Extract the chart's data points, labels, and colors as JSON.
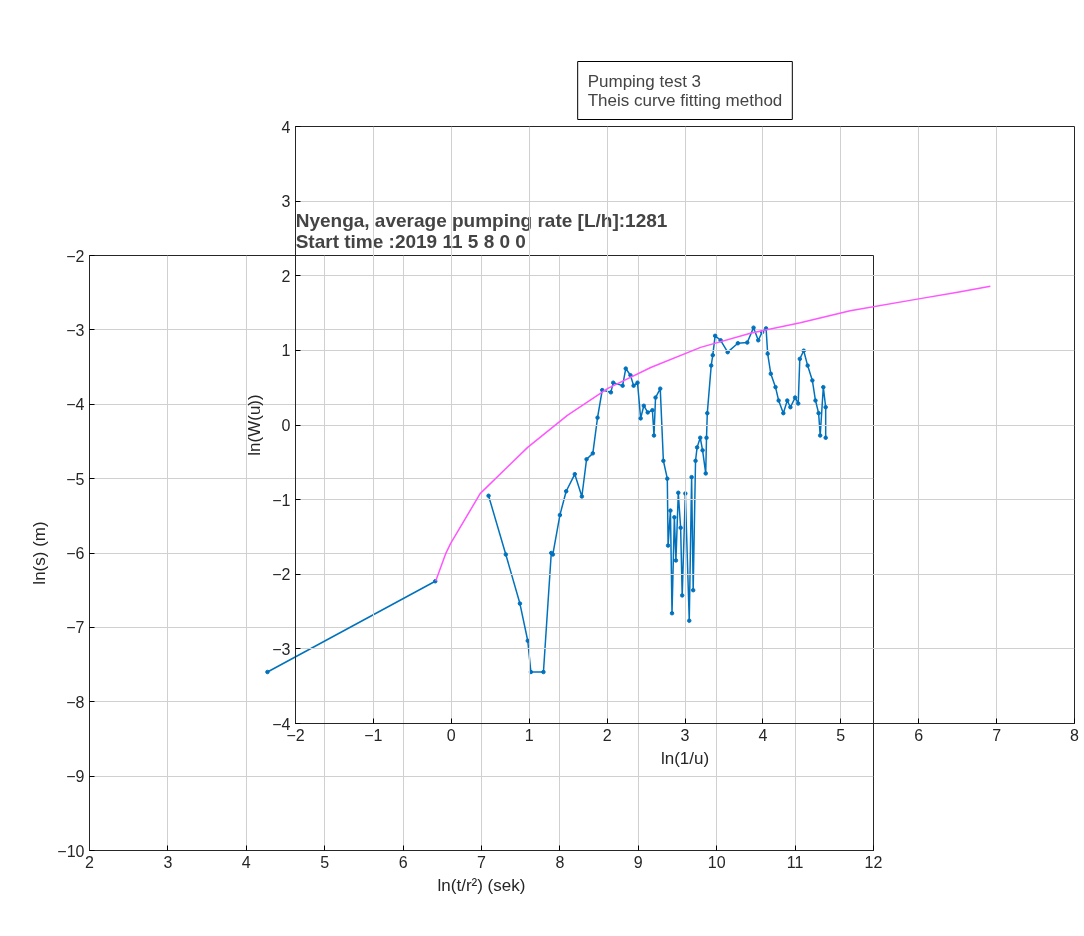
{
  "chart_data": [
    {
      "type": "line",
      "title": "Nyenga, average pumping rate [L/h]:1281\nStart time :2019     11     5     8     0     0",
      "xlabel": "ln(t/r²) (sek)",
      "ylabel": "ln(s) (m)",
      "xlim": [
        2,
        12
      ],
      "ylim": [
        -10,
        -2
      ],
      "xticks": [
        2,
        3,
        4,
        5,
        6,
        7,
        8,
        9,
        10,
        11,
        12
      ],
      "yticks": [
        -10,
        -9,
        -8,
        -7,
        -6,
        -5,
        -4,
        -3,
        -2
      ],
      "grid": true,
      "marker": "circle",
      "series": [
        {
          "color": "#0072bd",
          "x": [
            4.27,
            6.41,
            6.7,
            7.09,
            7.31,
            7.49,
            7.59,
            7.63,
            7.79,
            7.89,
            7.91,
            8.0,
            8.08,
            8.19,
            8.28,
            8.34,
            8.42,
            8.48,
            8.54,
            8.65,
            8.68,
            8.8,
            8.84,
            8.9,
            8.94,
            8.99,
            9.03,
            9.07,
            9.12,
            9.18,
            9.2,
            9.22,
            9.28,
            9.32,
            9.37,
            9.38,
            9.41,
            9.43,
            9.46,
            9.48,
            9.51,
            9.54,
            9.56,
            9.6,
            9.65,
            9.68,
            9.7,
            9.73,
            9.75,
            9.79,
            9.82,
            9.86,
            9.87,
            9.88,
            9.93,
            9.95,
            9.98,
            10.05,
            10.14,
            10.27,
            10.39,
            10.47,
            10.53,
            10.58,
            10.63,
            10.65,
            10.69,
            10.75,
            10.79,
            10.85,
            10.9,
            10.94,
            11.0,
            11.04,
            11.06,
            11.11,
            11.16,
            11.22,
            11.26,
            11.3,
            11.32,
            11.36,
            11.39,
            11.39
          ],
          "values": [
            -7.6,
            -6.38,
            null,
            -5.23,
            -6.02,
            -6.68,
            -7.18,
            -7.6,
            -7.6,
            -6.0,
            -6.02,
            -5.49,
            -5.17,
            -4.94,
            -5.24,
            -4.74,
            -4.66,
            -4.18,
            -3.81,
            -3.84,
            -3.71,
            -3.75,
            -3.52,
            -3.61,
            -3.75,
            -3.71,
            -4.19,
            -4.02,
            -4.11,
            -4.08,
            -4.42,
            -3.91,
            -3.79,
            -4.76,
            -5.0,
            -5.9,
            -5.43,
            -6.81,
            -5.52,
            -6.1,
            -5.19,
            -5.66,
            -6.57,
            -5.2,
            -6.91,
            -4.98,
            -6.5,
            -4.76,
            -4.58,
            -4.45,
            -4.62,
            -4.93,
            -4.45,
            -4.12,
            -3.48,
            -3.34,
            -3.08,
            -3.14,
            -3.3,
            -3.18,
            -3.17,
            -2.97,
            -3.14,
            -3.03,
            -2.98,
            -3.32,
            -3.59,
            -3.77,
            -3.95,
            -4.12,
            -3.95,
            -4.04,
            -3.91,
            -3.99,
            -3.39,
            -3.28,
            -3.48,
            -3.68,
            -3.95,
            -4.12,
            -4.42,
            -3.77,
            -4.04,
            -4.45
          ]
        }
      ]
    },
    {
      "type": "line",
      "title": "Pumping test 3\nTheis curve fitting method",
      "xlabel": "ln(1/u)",
      "ylabel": "ln(W(u))",
      "xlim": [
        -2,
        8
      ],
      "ylim": [
        -4,
        4
      ],
      "xticks": [
        -2,
        -1,
        0,
        1,
        2,
        3,
        4,
        5,
        6,
        7,
        8
      ],
      "yticks": [
        -4,
        -3,
        -2,
        -1,
        0,
        1,
        2,
        3,
        4
      ],
      "grid": true,
      "series": [
        {
          "color": "#ff55ff",
          "x": [
            -0.2,
            -0.07,
            -0.01,
            0.37,
            0.98,
            1.49,
            2.01,
            2.56,
            3.2,
            3.84,
            4.48,
            5.12,
            6.0,
            6.5,
            6.92
          ],
          "values": [
            -2.09,
            -1.72,
            -1.59,
            -0.92,
            -0.3,
            0.13,
            0.49,
            0.77,
            1.04,
            1.23,
            1.37,
            1.53,
            1.69,
            1.78,
            1.86
          ]
        }
      ]
    }
  ]
}
